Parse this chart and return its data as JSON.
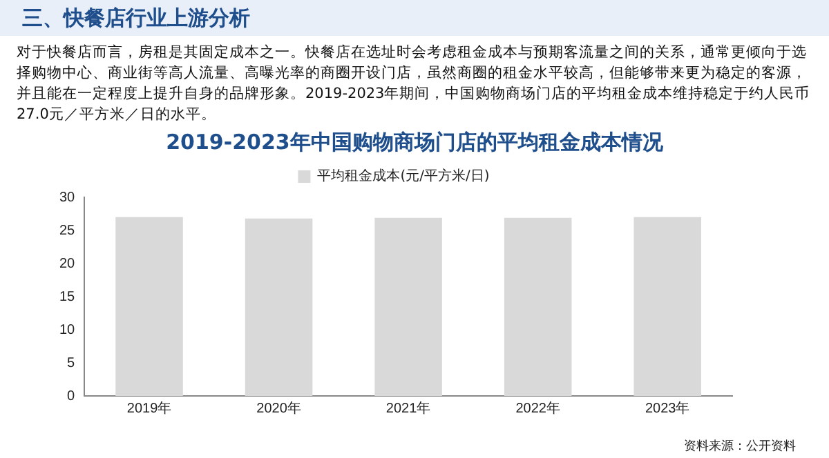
{
  "chart_data": {
    "type": "bar",
    "title": "2019-2023年中国购物商场门店的平均租金成本情况",
    "annotations": [
      "三、快餐店行业上游分析",
      "对于快餐店而言，房租是其固定成本之一。快餐店在选址时会考虑租金成本与预期客流量之间的关系，通常更倾向于选择购物中心、商业街等高人流量、高曝光率的商圈开设门店，虽然商圈的租金水平较高，但能够带来更为稳定的客源，并且能在一定程度上提升自身的品牌形象。2019-2023年期间，中国购物商场门店的平均租金成本维持稳定于约人民币27.0元／平方米／日的水平。",
      "资料来源：公开资料"
    ],
    "categories": [
      "2019年",
      "2020年",
      "2021年",
      "2022年",
      "2023年"
    ],
    "series": [
      {
        "name": "平均租金成本(元/平方米/日)",
        "color": "#d9d9d9",
        "values": [
          27.0,
          26.8,
          26.9,
          26.9,
          27.0
        ]
      }
    ],
    "ylim": [
      0,
      30
    ],
    "yticks": [
      0,
      5,
      10,
      15,
      20,
      25,
      30
    ],
    "grid": false,
    "legend": "top"
  }
}
